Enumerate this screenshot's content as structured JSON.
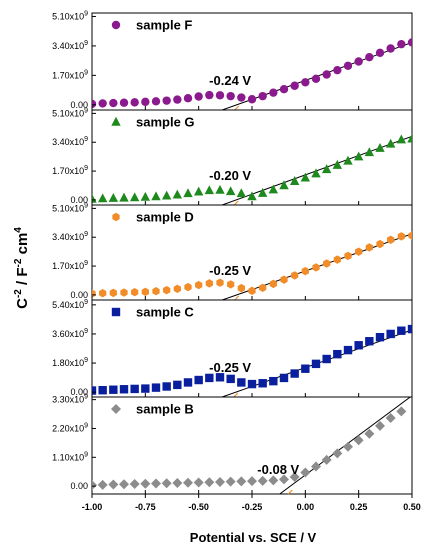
{
  "chart_data": {
    "type": "scatter",
    "layout": "stacked panels sharing x axis",
    "xlabel": "Potential vs. SCE / V",
    "ylabel": {
      "base": "C",
      "exp1": "-2",
      "mid": " / F",
      "exp2": "-2",
      "tail": " cm",
      "exp3": "4"
    },
    "xlim": [
      -1.0,
      0.5
    ],
    "xticks": [
      "-1.00",
      "-0.75",
      "-0.50",
      "-0.25",
      "0.00",
      "0.25",
      "0.50"
    ],
    "xtick_values": [
      -1.0,
      -0.75,
      -0.5,
      -0.25,
      0.0,
      0.25,
      0.5
    ],
    "x": [
      -1.0,
      -0.95,
      -0.9,
      -0.85,
      -0.8,
      -0.75,
      -0.7,
      -0.65,
      -0.6,
      -0.55,
      -0.5,
      -0.45,
      -0.4,
      -0.35,
      -0.3,
      -0.25,
      -0.2,
      -0.15,
      -0.1,
      -0.05,
      0.0,
      0.05,
      0.1,
      0.15,
      0.2,
      0.25,
      0.3,
      0.35,
      0.4,
      0.45,
      0.5
    ],
    "panels": [
      {
        "name": "sample F",
        "marker": "circle",
        "color": "#8b1a8f",
        "ylim": [
          -0.3,
          5.3
        ],
        "yticks": [
          {
            "value": 0.0,
            "mant": "0.00",
            "exp": ""
          },
          {
            "value": 1.7,
            "mant": "1.70x10",
            "exp": "9"
          },
          {
            "value": 3.4,
            "mant": "3.40x10",
            "exp": "9"
          },
          {
            "value": 5.1,
            "mant": "5.10x10",
            "exp": "9"
          }
        ],
        "values": [
          0.05,
          0.08,
          0.1,
          0.12,
          0.14,
          0.17,
          0.2,
          0.24,
          0.3,
          0.38,
          0.48,
          0.56,
          0.55,
          0.5,
          0.42,
          0.32,
          0.5,
          0.7,
          0.9,
          1.1,
          1.3,
          1.5,
          1.75,
          2.0,
          2.25,
          2.5,
          2.75,
          3.0,
          3.25,
          3.5,
          3.6
        ],
        "fit_line": [
          [
            -0.39,
            -0.3
          ],
          [
            0.5,
            3.6
          ]
        ],
        "annotation": "-0.24 V"
      },
      {
        "name": "sample G",
        "marker": "triangle",
        "color": "#1e8a1e",
        "ylim": [
          -0.3,
          5.3
        ],
        "yticks": [
          {
            "value": 0.0,
            "mant": "0.00",
            "exp": ""
          },
          {
            "value": 1.7,
            "mant": "1.70x10",
            "exp": "9"
          },
          {
            "value": 3.4,
            "mant": "3.40x10",
            "exp": "9"
          },
          {
            "value": 5.1,
            "mant": "5.10x10",
            "exp": "9"
          }
        ],
        "values": [
          0.05,
          0.08,
          0.1,
          0.12,
          0.14,
          0.17,
          0.2,
          0.24,
          0.3,
          0.38,
          0.48,
          0.56,
          0.58,
          0.5,
          0.38,
          0.2,
          0.4,
          0.6,
          0.85,
          1.1,
          1.3,
          1.55,
          1.8,
          2.05,
          2.3,
          2.55,
          2.8,
          3.05,
          3.3,
          3.55,
          3.6
        ],
        "fit_line": [
          [
            -0.39,
            -0.3
          ],
          [
            0.5,
            3.75
          ]
        ],
        "annotation": "-0.20 V"
      },
      {
        "name": "sample D",
        "marker": "hexagon",
        "color": "#f28c28",
        "ylim": [
          -0.3,
          5.3
        ],
        "yticks": [
          {
            "value": 0.0,
            "mant": "0.00",
            "exp": ""
          },
          {
            "value": 1.7,
            "mant": "1.70x10",
            "exp": "9"
          },
          {
            "value": 3.4,
            "mant": "3.40x10",
            "exp": "9"
          },
          {
            "value": 5.1,
            "mant": "5.10x10",
            "exp": "9"
          }
        ],
        "values": [
          0.08,
          0.1,
          0.12,
          0.14,
          0.16,
          0.18,
          0.22,
          0.28,
          0.36,
          0.46,
          0.58,
          0.68,
          0.72,
          0.62,
          0.4,
          0.24,
          0.42,
          0.65,
          0.9,
          1.15,
          1.4,
          1.62,
          1.85,
          2.08,
          2.3,
          2.55,
          2.8,
          3.0,
          3.25,
          3.45,
          3.5
        ],
        "fit_line": [
          [
            -0.39,
            -0.3
          ],
          [
            0.5,
            3.6
          ]
        ],
        "annotation": "-0.25 V"
      },
      {
        "name": "sample C",
        "marker": "square",
        "color": "#0a1f9e",
        "ylim": [
          -0.3,
          5.7
        ],
        "yticks": [
          {
            "value": 0.0,
            "mant": "0.00",
            "exp": ""
          },
          {
            "value": 1.8,
            "mant": "1.80x10",
            "exp": "9"
          },
          {
            "value": 3.6,
            "mant": "3.60x10",
            "exp": "9"
          },
          {
            "value": 5.4,
            "mant": "5.40x10",
            "exp": "9"
          }
        ],
        "values": [
          0.1,
          0.12,
          0.15,
          0.18,
          0.2,
          0.22,
          0.28,
          0.35,
          0.45,
          0.6,
          0.75,
          0.88,
          0.92,
          0.82,
          0.6,
          0.5,
          0.55,
          0.68,
          0.88,
          1.15,
          1.45,
          1.75,
          2.05,
          2.35,
          2.6,
          2.9,
          3.15,
          3.4,
          3.6,
          3.8,
          3.9
        ],
        "fit_line": [
          [
            -0.39,
            -0.3
          ],
          [
            0.5,
            3.85
          ]
        ],
        "annotation": "-0.25 V"
      },
      {
        "name": "sample B",
        "marker": "diamond",
        "color": "#8c8c8c",
        "ylim": [
          -0.3,
          3.4
        ],
        "yticks": [
          {
            "value": 0.0,
            "mant": "0.00",
            "exp": ""
          },
          {
            "value": 1.1,
            "mant": "1.10x10",
            "exp": "9"
          },
          {
            "value": 2.2,
            "mant": "2.20x10",
            "exp": "9"
          },
          {
            "value": 3.3,
            "mant": "3.30x10",
            "exp": "9"
          }
        ],
        "values": [
          0.04,
          0.05,
          0.06,
          0.07,
          0.08,
          0.09,
          0.1,
          0.11,
          0.12,
          0.13,
          0.14,
          0.15,
          0.16,
          0.17,
          0.18,
          0.19,
          0.2,
          0.22,
          0.26,
          0.35,
          0.52,
          0.75,
          1.0,
          1.25,
          1.5,
          1.75,
          2.0,
          2.3,
          2.6,
          2.85,
          null
        ],
        "fit_line": [
          [
            -0.12,
            -0.3
          ],
          [
            0.5,
            3.45
          ]
        ],
        "annotation": "-0.08 V"
      }
    ]
  }
}
